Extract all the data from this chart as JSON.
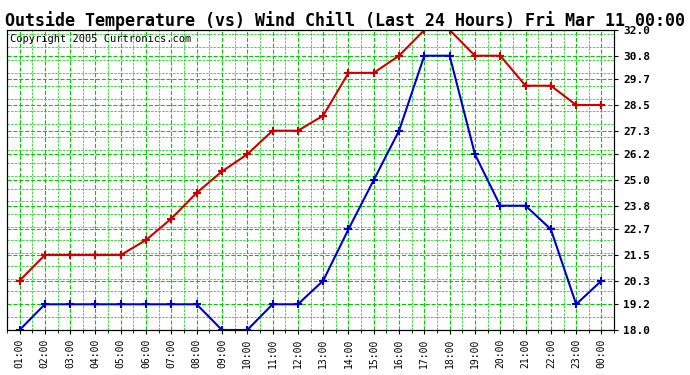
{
  "title": "Outside Temperature (vs) Wind Chill (Last 24 Hours) Fri Mar 11 00:00",
  "copyright": "Copyright 2005 Curtronics.com",
  "x_labels": [
    "01:00",
    "02:00",
    "03:00",
    "04:00",
    "05:00",
    "06:00",
    "07:00",
    "08:00",
    "09:00",
    "10:00",
    "11:00",
    "12:00",
    "13:00",
    "14:00",
    "15:00",
    "16:00",
    "17:00",
    "18:00",
    "19:00",
    "20:00",
    "21:00",
    "22:00",
    "23:00",
    "00:00"
  ],
  "red_data": [
    20.3,
    21.5,
    21.5,
    21.5,
    21.5,
    22.2,
    23.2,
    24.4,
    25.4,
    26.2,
    27.3,
    27.3,
    28.0,
    30.0,
    30.0,
    30.8,
    32.0,
    32.0,
    30.8,
    30.8,
    29.4,
    29.4,
    28.5,
    28.5
  ],
  "blue_data": [
    18.0,
    19.2,
    19.2,
    19.2,
    19.2,
    19.2,
    19.2,
    19.2,
    18.0,
    18.0,
    19.2,
    19.2,
    20.3,
    22.7,
    25.0,
    27.3,
    30.8,
    30.8,
    26.2,
    23.8,
    23.8,
    22.7,
    19.2,
    20.3
  ],
  "ylim": [
    18.0,
    32.0
  ],
  "yticks": [
    18.0,
    19.2,
    20.3,
    21.5,
    22.7,
    23.8,
    25.0,
    26.2,
    27.3,
    28.5,
    29.7,
    30.8,
    32.0
  ],
  "red_color": "#cc0000",
  "blue_color": "#0000cc",
  "grid_color": "#00cc00",
  "bg_color": "#ffffff",
  "title_fontsize": 12,
  "copyright_fontsize": 7.5
}
